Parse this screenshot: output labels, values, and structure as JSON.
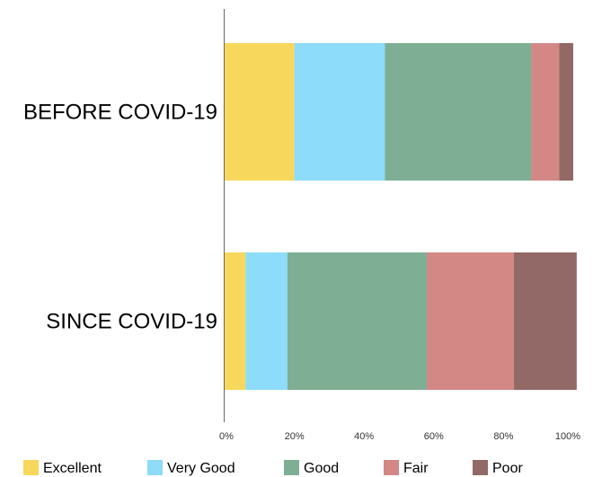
{
  "chart_data": {
    "type": "bar",
    "orientation": "horizontal",
    "stacked": true,
    "categories": [
      "BEFORE COVID-19",
      "SINCE COVID-19"
    ],
    "series": [
      {
        "name": "Excellent",
        "color": "#F7D85C",
        "values": [
          20,
          6
        ]
      },
      {
        "name": "Very Good",
        "color": "#8DDCF9",
        "values": [
          26,
          12
        ]
      },
      {
        "name": "Good",
        "color": "#7EAE94",
        "values": [
          42,
          40
        ]
      },
      {
        "name": "Fair",
        "color": "#D38885",
        "values": [
          8,
          25
        ]
      },
      {
        "name": "Poor",
        "color": "#926966",
        "values": [
          4,
          18
        ]
      }
    ],
    "xlim": [
      0,
      100
    ],
    "xticks": [
      "0%",
      "20%",
      "40%",
      "60%",
      "80%",
      "100%"
    ],
    "grid": false,
    "legend_position": "bottom",
    "title": "",
    "xlabel": "",
    "ylabel": ""
  }
}
